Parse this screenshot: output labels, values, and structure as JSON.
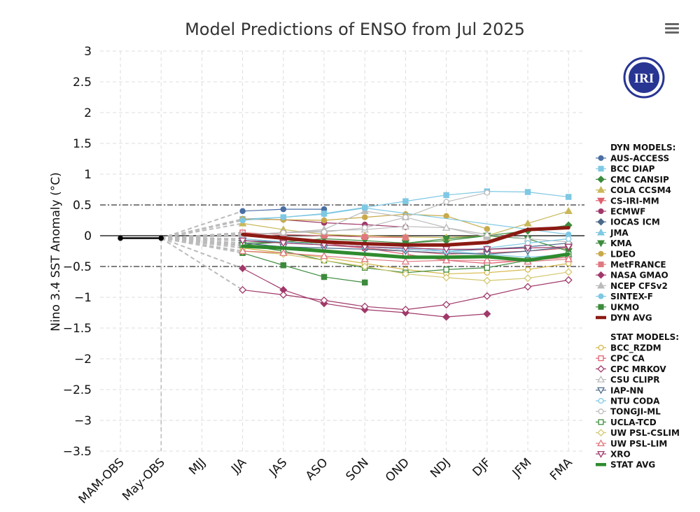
{
  "menu_icon": "hamburger-menu-icon",
  "logo": {
    "text": "IRI",
    "color": "#283593"
  },
  "colors": {
    "obs": "#000000",
    "dyn_avg": "#8b1a13",
    "stat_avg": "#2e8b2e",
    "guide": "#bbbbbb",
    "grid": "#dddddd"
  },
  "chart_data": {
    "type": "line",
    "title": "Model Predictions of ENSO from Jul 2025",
    "xlabel": "",
    "ylabel": "Nino 3.4 SST Anomaly (°C)",
    "ylim": [
      -3.5,
      3
    ],
    "yticks": [
      "3",
      "2.5",
      "2",
      "1.5",
      "1",
      "0.5",
      "0",
      "−0.5",
      "−1",
      "−1.5",
      "−2",
      "−2.5",
      "−3",
      "−3.5"
    ],
    "ytick_values": [
      3,
      2.5,
      2,
      1.5,
      1,
      0.5,
      0,
      -0.5,
      -1,
      -1.5,
      -2,
      -2.5,
      -3,
      -3.5
    ],
    "categories": [
      "MAM-OBS",
      "May-OBS",
      "MJJ",
      "JJA",
      "JAS",
      "ASO",
      "SON",
      "OND",
      "NDJ",
      "DJF",
      "JFM",
      "FMA"
    ],
    "reference_lines": [
      0.5,
      -0.5
    ],
    "observed": {
      "values": [
        -0.04,
        -0.04,
        null,
        null,
        null,
        null,
        null,
        null,
        null,
        null,
        null,
        null
      ]
    },
    "dyn_title": "DYN MODELS:",
    "stat_title": "STAT MODELS:",
    "dyn_series": [
      {
        "name": "AUS-ACCESS",
        "color": "#4a6fa5",
        "marker": "circle",
        "fill": true,
        "values": [
          null,
          null,
          null,
          0.4,
          0.43,
          0.43,
          null,
          null,
          null,
          null,
          null,
          null
        ]
      },
      {
        "name": "BCC DIAP",
        "color": "#7ec8e3",
        "marker": "square",
        "fill": true,
        "values": [
          null,
          null,
          null,
          0.27,
          0.3,
          0.36,
          0.46,
          0.56,
          0.66,
          0.72,
          0.71,
          0.63
        ]
      },
      {
        "name": "CMC CANSIP",
        "color": "#3d8b3d",
        "marker": "diamond",
        "fill": true,
        "values": [
          null,
          null,
          null,
          -0.12,
          -0.1,
          -0.12,
          -0.14,
          -0.12,
          -0.08,
          0.0,
          0.08,
          0.17
        ]
      },
      {
        "name": "COLA CCSM4",
        "color": "#c9b85a",
        "marker": "triangle",
        "fill": true,
        "values": [
          null,
          null,
          null,
          0.2,
          0.1,
          0.02,
          0.0,
          -0.02,
          -0.03,
          0.0,
          0.2,
          0.4
        ]
      },
      {
        "name": "CS-IRI-MM",
        "color": "#e06070",
        "marker": "triangle-down",
        "fill": true,
        "values": [
          null,
          null,
          null,
          -0.05,
          -0.1,
          -0.15,
          -0.2,
          -0.25,
          -0.3,
          -0.28,
          -0.25,
          -0.2
        ]
      },
      {
        "name": "ECMWF",
        "color": "#a0396a",
        "marker": "circle",
        "fill": true,
        "values": [
          null,
          null,
          null,
          0.27,
          0.26,
          0.21,
          0.18,
          0.14,
          null,
          null,
          null,
          null
        ]
      },
      {
        "name": "IOCAS ICM",
        "color": "#4a6a8a",
        "marker": "diamond",
        "fill": true,
        "values": [
          null,
          null,
          null,
          -0.08,
          -0.1,
          -0.15,
          -0.18,
          -0.22,
          -0.25,
          -0.22,
          -0.18,
          -0.12
        ]
      },
      {
        "name": "JMA",
        "color": "#7ec8e3",
        "marker": "triangle",
        "fill": true,
        "values": [
          null,
          null,
          null,
          0.0,
          -0.05,
          -0.08,
          -0.12,
          -0.18,
          -0.25,
          -0.3,
          -0.35,
          -0.3
        ]
      },
      {
        "name": "KMA",
        "color": "#3d8b3d",
        "marker": "triangle-down",
        "fill": true,
        "values": [
          null,
          null,
          null,
          -0.15,
          -0.1,
          -0.05,
          -0.08,
          -0.12,
          -0.05,
          0.0,
          -0.05,
          -0.25
        ]
      },
      {
        "name": "LDEO",
        "color": "#c9aa4a",
        "marker": "circle",
        "fill": true,
        "values": [
          null,
          null,
          null,
          0.27,
          0.26,
          0.25,
          0.3,
          0.35,
          0.32,
          0.11,
          null,
          null
        ]
      },
      {
        "name": "MetFRANCE",
        "color": "#e07880",
        "marker": "square",
        "fill": true,
        "values": [
          null,
          null,
          null,
          0.05,
          0.02,
          0.0,
          -0.02,
          -0.03,
          null,
          null,
          null,
          null
        ]
      },
      {
        "name": "NASA GMAO",
        "color": "#a0396a",
        "marker": "diamond",
        "fill": true,
        "values": [
          null,
          null,
          null,
          -0.53,
          -0.88,
          -1.1,
          -1.2,
          -1.25,
          -1.32,
          -1.27,
          null,
          null
        ]
      },
      {
        "name": "NCEP CFSv2",
        "color": "#bbbbbb",
        "marker": "triangle",
        "fill": true,
        "values": [
          null,
          null,
          null,
          0.0,
          0.05,
          0.1,
          0.4,
          0.3,
          0.13,
          -0.02,
          null,
          null
        ]
      },
      {
        "name": "SINTEX-F",
        "color": "#7ec8e3",
        "marker": "circle",
        "fill": true,
        "values": [
          null,
          null,
          null,
          0.25,
          0.3,
          0.35,
          0.45,
          null,
          null,
          null,
          null,
          0.02
        ]
      },
      {
        "name": "UKMO",
        "color": "#3d8b3d",
        "marker": "square",
        "fill": true,
        "values": [
          null,
          null,
          null,
          -0.28,
          -0.48,
          -0.67,
          -0.76,
          null,
          null,
          null,
          null,
          null
        ]
      },
      {
        "name": "DYN AVG",
        "color": "#8b1a13",
        "marker": "line",
        "fill": true,
        "width": 5,
        "values": [
          null,
          null,
          null,
          0.02,
          -0.04,
          -0.1,
          -0.13,
          -0.15,
          -0.15,
          -0.11,
          0.1,
          0.13
        ]
      }
    ],
    "stat_series": [
      {
        "name": "BCC_RZDM",
        "color": "#d4b84a",
        "marker": "circle",
        "fill": false,
        "values": [
          null,
          null,
          null,
          -0.2,
          -0.28,
          -0.35,
          -0.45,
          -0.55,
          -0.62,
          -0.6,
          -0.55,
          -0.45
        ]
      },
      {
        "name": "CPC CA",
        "color": "#e06070",
        "marker": "square",
        "fill": false,
        "values": [
          null,
          null,
          null,
          0.05,
          -0.05,
          -0.12,
          -0.2,
          -0.3,
          -0.4,
          -0.45,
          -0.4,
          -0.35
        ]
      },
      {
        "name": "CPC MRKOV",
        "color": "#a0396a",
        "marker": "diamond",
        "fill": false,
        "values": [
          null,
          null,
          null,
          -0.88,
          -0.96,
          -1.05,
          -1.15,
          -1.2,
          -1.12,
          -0.98,
          -0.83,
          -0.72
        ]
      },
      {
        "name": "CSU CLIPR",
        "color": "#bbbbbb",
        "marker": "triangle",
        "fill": false,
        "values": [
          null,
          null,
          null,
          0.02,
          0.05,
          0.08,
          0.1,
          0.15,
          0.13,
          0.02,
          -0.05,
          -0.1
        ]
      },
      {
        "name": "IAP-NN",
        "color": "#4a6a8a",
        "marker": "triangle-down",
        "fill": false,
        "values": [
          null,
          null,
          null,
          -0.12,
          -0.18,
          -0.2,
          -0.22,
          -0.25,
          -0.28,
          -0.3,
          -0.25,
          -0.18
        ]
      },
      {
        "name": "NTU CODA",
        "color": "#7ec8e3",
        "marker": "circle",
        "fill": false,
        "values": [
          null,
          null,
          null,
          -0.05,
          -0.1,
          -0.15,
          -0.18,
          -0.22,
          -0.25,
          -0.2,
          -0.12,
          -0.05
        ]
      },
      {
        "name": "TONGJI-ML",
        "color": "#bbbbbb",
        "marker": "circle",
        "fill": false,
        "values": [
          null,
          null,
          null,
          0.02,
          0.05,
          0.06,
          0.13,
          0.3,
          0.55,
          0.7,
          null,
          null
        ]
      },
      {
        "name": "UCLA-TCD",
        "color": "#3d8b3d",
        "marker": "square",
        "fill": false,
        "values": [
          null,
          null,
          null,
          -0.15,
          -0.25,
          -0.4,
          -0.52,
          -0.6,
          -0.55,
          -0.52,
          -0.4,
          -0.3
        ]
      },
      {
        "name": "UW PSL-CSLIM",
        "color": "#d4c870",
        "marker": "diamond",
        "fill": false,
        "values": [
          null,
          null,
          null,
          -0.25,
          -0.3,
          -0.4,
          -0.5,
          -0.62,
          -0.68,
          -0.73,
          -0.69,
          -0.59
        ]
      },
      {
        "name": "UW PSL-LIM",
        "color": "#e07880",
        "marker": "triangle",
        "fill": false,
        "values": [
          null,
          null,
          null,
          -0.25,
          -0.28,
          -0.33,
          -0.38,
          -0.42,
          -0.4,
          -0.4,
          -0.42,
          -0.38
        ]
      },
      {
        "name": "XRO",
        "color": "#a0396a",
        "marker": "triangle-down",
        "fill": false,
        "values": [
          null,
          null,
          null,
          -0.08,
          -0.12,
          -0.15,
          -0.18,
          -0.2,
          -0.22,
          -0.22,
          -0.2,
          -0.18
        ]
      },
      {
        "name": "STAT AVG",
        "color": "#2e8b2e",
        "marker": "line",
        "fill": true,
        "width": 5,
        "values": [
          null,
          null,
          null,
          -0.17,
          -0.2,
          -0.25,
          -0.3,
          -0.35,
          -0.35,
          -0.34,
          -0.4,
          -0.3
        ]
      }
    ]
  }
}
